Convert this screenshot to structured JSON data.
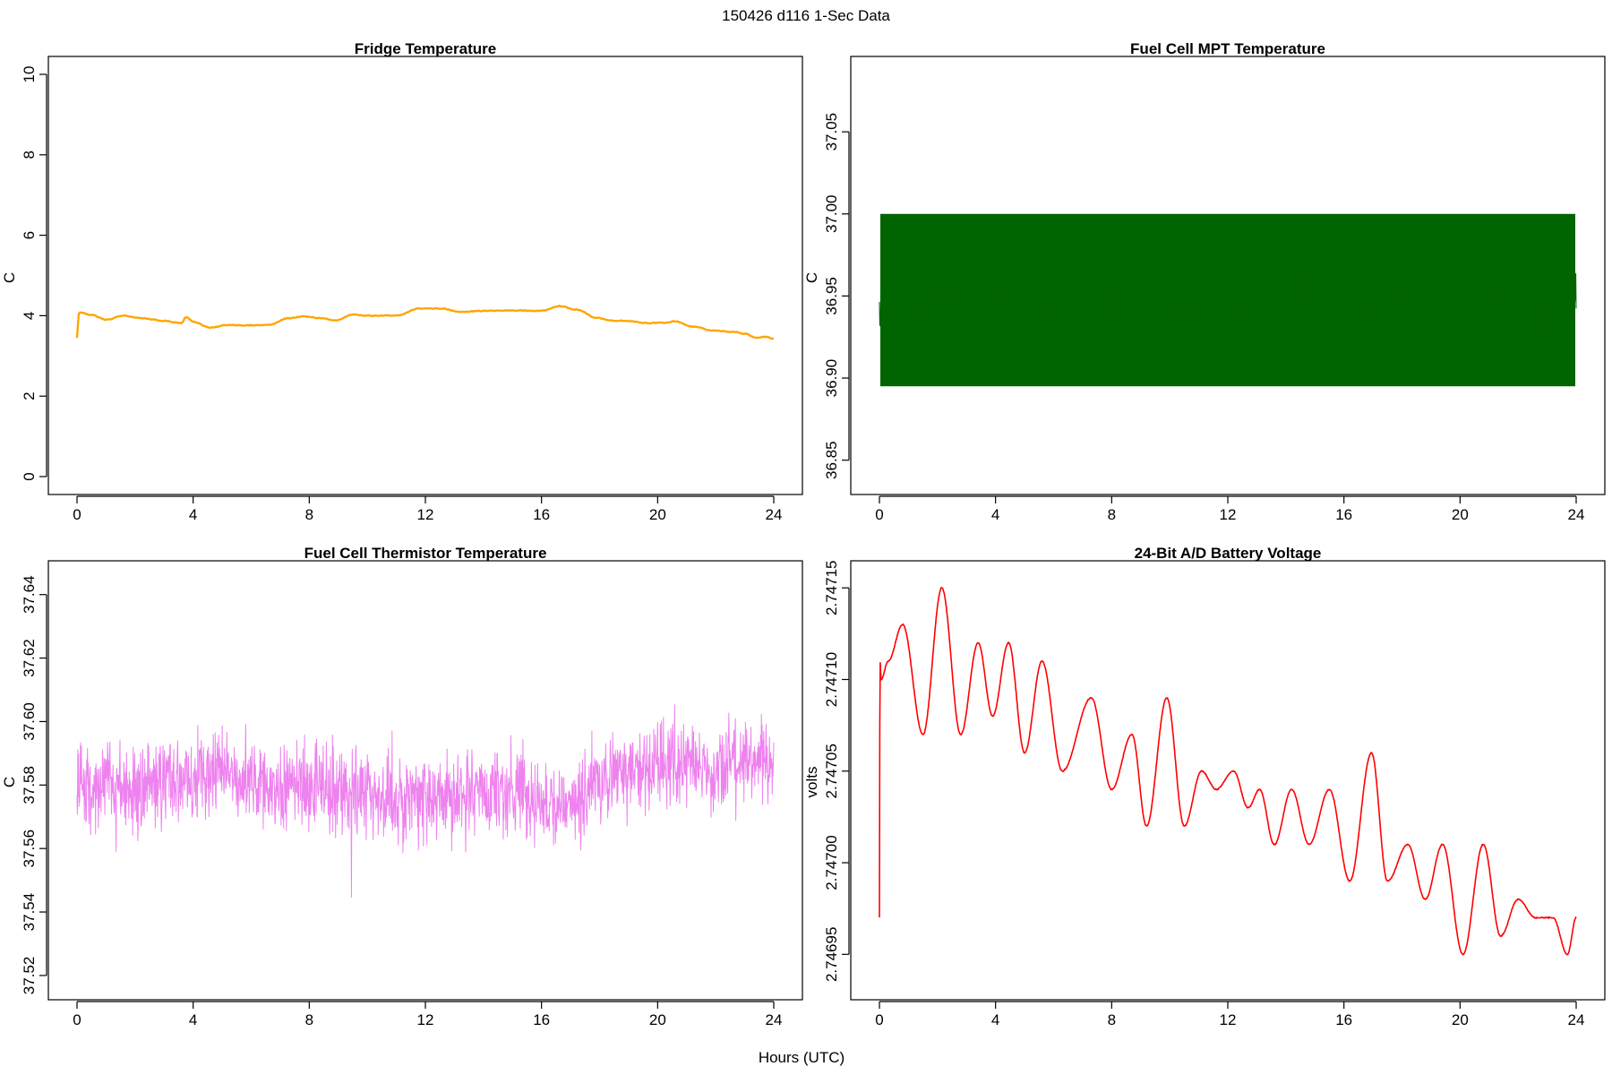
{
  "figure": {
    "main_title": "150426   d116   1-Sec Data",
    "xlabel": "Hours (UTC)"
  },
  "chart_data": [
    {
      "type": "line",
      "title": "Fridge Temperature",
      "ylabel": "C",
      "xlabel": "Hours (UTC)",
      "xlim": [
        0,
        24
      ],
      "ylim": [
        0,
        10
      ],
      "xticks": [
        "0",
        "4",
        "8",
        "12",
        "16",
        "20",
        "24"
      ],
      "yticks": [
        "0",
        "2",
        "4",
        "6",
        "8",
        "10"
      ],
      "color": "#FFA500",
      "noise": 0,
      "series": [
        {
          "name": "Fridge Temperature",
          "x": [
            0,
            0.05,
            0.1,
            0.5,
            1.0,
            1.6,
            2.2,
            3.0,
            3.6,
            3.75,
            4.0,
            4.6,
            5.2,
            6.0,
            6.6,
            7.3,
            7.8,
            8.4,
            8.9,
            9.5,
            10.2,
            11.0,
            11.8,
            12.5,
            13.2,
            14.0,
            15.0,
            16.0,
            16.6,
            17.2,
            17.9,
            18.4,
            19.0,
            19.6,
            20.2,
            20.6,
            21.2,
            21.9,
            22.6,
            23.0,
            23.4,
            23.7,
            24.0
          ],
          "y": [
            3.45,
            4.05,
            4.08,
            4.02,
            3.9,
            4.0,
            3.94,
            3.87,
            3.82,
            3.97,
            3.85,
            3.7,
            3.77,
            3.76,
            3.77,
            3.94,
            3.98,
            3.94,
            3.88,
            4.02,
            4.0,
            4.0,
            4.18,
            4.18,
            4.1,
            4.12,
            4.13,
            4.12,
            4.24,
            4.15,
            3.95,
            3.88,
            3.87,
            3.82,
            3.82,
            3.86,
            3.73,
            3.63,
            3.6,
            3.55,
            3.45,
            3.47,
            3.43
          ]
        }
      ]
    },
    {
      "type": "line",
      "title": "Fuel Cell MPT Temperature",
      "ylabel": "C",
      "xlabel": "Hours (UTC)",
      "xlim": [
        0,
        24
      ],
      "ylim": [
        36.84,
        37.085
      ],
      "xticks": [
        "0",
        "4",
        "8",
        "12",
        "16",
        "20",
        "24"
      ],
      "yticks": [
        "36.85",
        "36.90",
        "36.95",
        "37.00",
        "37.05"
      ],
      "color": "#006400",
      "noise": 0.028,
      "band_low": 36.895,
      "band_high": 37.0,
      "series": [
        {
          "name": "Fuel Cell MPT Temperature",
          "x": [
            0,
            4,
            8,
            12,
            16,
            20,
            24
          ],
          "y": [
            36.947,
            36.947,
            36.947,
            36.947,
            36.947,
            36.947,
            36.947
          ]
        }
      ]
    },
    {
      "type": "line",
      "title": "Fuel Cell Thermistor Temperature",
      "ylabel": "C",
      "xlabel": "Hours (UTC)",
      "xlim": [
        0,
        24
      ],
      "ylim": [
        37.518,
        37.645
      ],
      "xticks": [
        "0",
        "4",
        "8",
        "12",
        "16",
        "20",
        "24"
      ],
      "yticks": [
        "37.52",
        "37.54",
        "37.56",
        "37.58",
        "37.60",
        "37.62",
        "37.64"
      ],
      "color": "#EE82EE",
      "noise": 0.02,
      "series": [
        {
          "name": "Fuel Cell Thermistor Temperature",
          "x": [
            0,
            1,
            2,
            3,
            4,
            5,
            6,
            7,
            8,
            9,
            10,
            11,
            12,
            13,
            14,
            15,
            16,
            17,
            18,
            19,
            20,
            21,
            22,
            23,
            24
          ],
          "y": [
            37.58,
            37.58,
            37.578,
            37.58,
            37.582,
            37.585,
            37.581,
            37.579,
            37.58,
            37.579,
            37.578,
            37.575,
            37.576,
            37.577,
            37.577,
            37.578,
            37.575,
            37.574,
            37.582,
            37.584,
            37.584,
            37.587,
            37.585,
            37.587,
            37.585
          ]
        }
      ]
    },
    {
      "type": "line",
      "title": "24-Bit A/D Battery Voltage",
      "ylabel": "volts",
      "xlabel": "Hours (UTC)",
      "xlim": [
        0,
        24
      ],
      "ylim": [
        2.746935,
        2.747155
      ],
      "xticks": [
        "0",
        "4",
        "8",
        "12",
        "16",
        "20",
        "24"
      ],
      "yticks": [
        "2.74695",
        "2.74700",
        "2.74705",
        "2.74710",
        "2.74715"
      ],
      "color": "#FF0000",
      "noise": 4e-07,
      "series": [
        {
          "name": "24-Bit A/D Battery Voltage",
          "x": [
            0,
            0.02,
            0.06,
            0.3,
            0.8,
            1.5,
            2.15,
            2.8,
            3.4,
            3.9,
            4.45,
            5.0,
            5.6,
            6.3,
            7.3,
            8.0,
            8.7,
            9.2,
            9.9,
            10.5,
            11.1,
            11.6,
            12.2,
            12.7,
            13.1,
            13.6,
            14.2,
            14.8,
            15.5,
            16.2,
            16.95,
            17.5,
            18.2,
            18.8,
            19.4,
            20.1,
            20.8,
            21.4,
            22.0,
            22.6,
            23.2,
            23.7,
            24.0
          ],
          "y": [
            2.74697,
            2.74711,
            2.7471,
            2.74711,
            2.74713,
            2.74707,
            2.74715,
            2.74707,
            2.74712,
            2.74708,
            2.74712,
            2.74706,
            2.74711,
            2.74705,
            2.74709,
            2.74704,
            2.74707,
            2.74702,
            2.74709,
            2.74702,
            2.74705,
            2.74704,
            2.74705,
            2.74703,
            2.74704,
            2.74701,
            2.74704,
            2.74701,
            2.74704,
            2.74699,
            2.74706,
            2.74699,
            2.74701,
            2.74698,
            2.74701,
            2.74695,
            2.74701,
            2.74696,
            2.74698,
            2.74697,
            2.74697,
            2.74695,
            2.74697
          ]
        }
      ]
    }
  ]
}
